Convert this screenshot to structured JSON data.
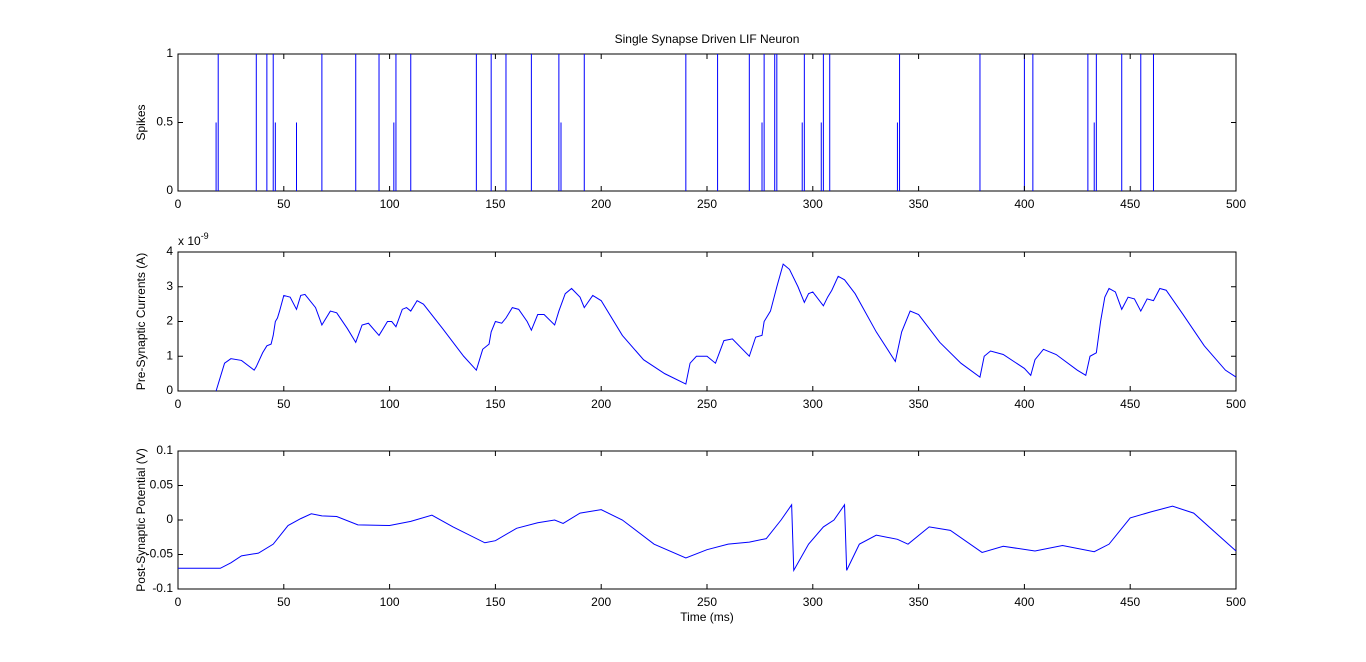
{
  "chart_data": [
    {
      "type": "stem",
      "title": "Single Synapse Driven LIF Neuron",
      "ylabel": "Spikes",
      "color": "#0000ff",
      "x": [
        18,
        19,
        37,
        42,
        45,
        46,
        56,
        68,
        84,
        95,
        102,
        103,
        110,
        141,
        148,
        155,
        167,
        180,
        181,
        192,
        240,
        255,
        270,
        276,
        277,
        282,
        283,
        295,
        296,
        304,
        305,
        308,
        340,
        341,
        379,
        400,
        404,
        430,
        433,
        434,
        446,
        455,
        461
      ],
      "values": [
        0.5,
        1,
        1,
        1,
        1,
        0.5,
        0.5,
        1,
        1,
        1,
        0.5,
        1,
        1,
        1,
        1,
        1,
        1,
        1,
        0.5,
        1,
        1,
        1,
        1,
        0.5,
        1,
        1,
        1,
        0.5,
        1,
        0.5,
        1,
        1,
        0.5,
        1,
        1,
        1,
        1,
        1,
        0.5,
        1,
        1,
        1,
        1
      ],
      "xlim": [
        0,
        500
      ],
      "ylim": [
        0,
        1
      ],
      "xticks": [
        0,
        50,
        100,
        150,
        200,
        250,
        300,
        350,
        400,
        450,
        500
      ],
      "yticks": [
        0,
        0.5,
        1
      ]
    },
    {
      "type": "line",
      "ylabel": "Pre-Synaptic Currents (A)",
      "y_exponent_base": "x 10",
      "y_exponent_power": "-9",
      "color": "#0000ff",
      "x": [
        18,
        22,
        25,
        30,
        36,
        37,
        40,
        42,
        44,
        45,
        46,
        47,
        48,
        50,
        53,
        56,
        58,
        60,
        65,
        68,
        69,
        72,
        75,
        80,
        84,
        87,
        90,
        95,
        96,
        99,
        101,
        103,
        106,
        108,
        110,
        113,
        116,
        125,
        135,
        141,
        144,
        147,
        148,
        150,
        153,
        155,
        158,
        161,
        165,
        167,
        170,
        173,
        178,
        180,
        183,
        186,
        190,
        192,
        196,
        200,
        210,
        220,
        230,
        240,
        242,
        245,
        250,
        254,
        258,
        262,
        270,
        273,
        276,
        277,
        280,
        283,
        286,
        289,
        293,
        296,
        298,
        300,
        305,
        307,
        309,
        312,
        315,
        320,
        330,
        339,
        342,
        346,
        350,
        360,
        370,
        379,
        381,
        384,
        390,
        400,
        403,
        405,
        409,
        415,
        425,
        429,
        431,
        434,
        436,
        438,
        440,
        443,
        446,
        449,
        452,
        455,
        458,
        461,
        464,
        467,
        475,
        485,
        495,
        500
      ],
      "values": [
        0,
        0.8,
        0.93,
        0.88,
        0.6,
        0.7,
        1.1,
        1.3,
        1.35,
        1.6,
        2.0,
        2.1,
        2.3,
        2.75,
        2.7,
        2.35,
        2.75,
        2.78,
        2.4,
        1.9,
        2.0,
        2.3,
        2.25,
        1.8,
        1.4,
        1.9,
        1.95,
        1.6,
        1.7,
        2.0,
        2.0,
        1.85,
        2.35,
        2.4,
        2.3,
        2.6,
        2.5,
        1.8,
        1.0,
        0.6,
        1.2,
        1.35,
        1.7,
        2.0,
        1.95,
        2.1,
        2.4,
        2.35,
        2.0,
        1.75,
        2.2,
        2.2,
        1.9,
        2.3,
        2.8,
        2.95,
        2.7,
        2.4,
        2.75,
        2.6,
        1.6,
        0.9,
        0.5,
        0.2,
        0.8,
        1.0,
        1.0,
        0.8,
        1.45,
        1.5,
        1.0,
        1.55,
        1.6,
        2.0,
        2.3,
        3.0,
        3.65,
        3.5,
        3.0,
        2.55,
        2.8,
        2.85,
        2.45,
        2.7,
        2.9,
        3.3,
        3.2,
        2.8,
        1.7,
        0.85,
        1.7,
        2.3,
        2.2,
        1.4,
        0.8,
        0.4,
        1.0,
        1.15,
        1.05,
        0.65,
        0.45,
        0.9,
        1.2,
        1.05,
        0.6,
        0.45,
        1.0,
        1.1,
        2.0,
        2.7,
        2.95,
        2.85,
        2.35,
        2.7,
        2.65,
        2.3,
        2.65,
        2.6,
        2.95,
        2.9,
        2.2,
        1.3,
        0.6,
        0.4
      ],
      "xlim": [
        0,
        500
      ],
      "ylim": [
        0,
        4
      ],
      "xticks": [
        0,
        50,
        100,
        150,
        200,
        250,
        300,
        350,
        400,
        450,
        500
      ],
      "yticks": [
        0,
        1,
        2,
        3,
        4
      ]
    },
    {
      "type": "line",
      "ylabel": "Post-Synaptic Potential (V)",
      "xlabel": "Time (ms)",
      "color": "#0000ff",
      "x": [
        0,
        20,
        25,
        30,
        38,
        45,
        52,
        58,
        63,
        68,
        75,
        85,
        100,
        110,
        120,
        130,
        145,
        150,
        160,
        170,
        178,
        182,
        190,
        200,
        210,
        225,
        240,
        250,
        260,
        270,
        278,
        285,
        290,
        291,
        298,
        305,
        310,
        315,
        316,
        322,
        330,
        340,
        345,
        355,
        365,
        380,
        390,
        405,
        418,
        433,
        440,
        450,
        460,
        470,
        480,
        500
      ],
      "values": [
        -0.07,
        -0.07,
        -0.062,
        -0.052,
        -0.048,
        -0.035,
        -0.008,
        0.002,
        0.009,
        0.006,
        0.005,
        -0.007,
        -0.008,
        -0.002,
        0.007,
        -0.01,
        -0.033,
        -0.03,
        -0.012,
        -0.004,
        0.0,
        -0.005,
        0.01,
        0.015,
        0.0,
        -0.035,
        -0.055,
        -0.043,
        -0.035,
        -0.032,
        -0.027,
        0.0,
        0.022,
        -0.073,
        -0.035,
        -0.01,
        0.0,
        0.022,
        -0.073,
        -0.035,
        -0.022,
        -0.028,
        -0.035,
        -0.01,
        -0.015,
        -0.047,
        -0.038,
        -0.045,
        -0.037,
        -0.046,
        -0.035,
        0.003,
        0.012,
        0.02,
        0.01,
        -0.045
      ],
      "xlim": [
        0,
        500
      ],
      "ylim": [
        -0.1,
        0.1
      ],
      "xticks": [
        0,
        50,
        100,
        150,
        200,
        250,
        300,
        350,
        400,
        450,
        500
      ],
      "yticks": [
        -0.1,
        -0.05,
        0,
        0.05,
        0.1
      ]
    }
  ]
}
